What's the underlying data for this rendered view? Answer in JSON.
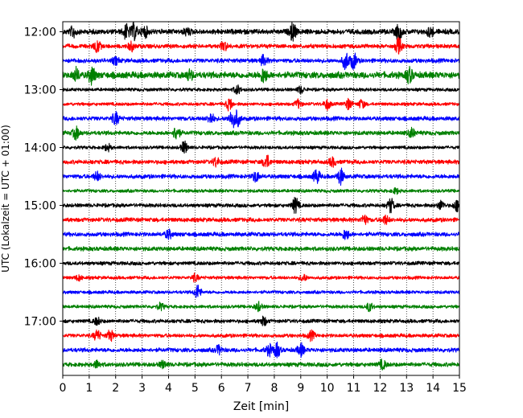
{
  "chart_data": {
    "type": "line",
    "title": "",
    "xlabel": "Zeit  [min]",
    "ylabel": "UTC (Lokalzeit = UTC + 01:00)",
    "xlim": [
      0,
      15
    ],
    "x_ticks": [
      "0",
      "1",
      "2",
      "3",
      "4",
      "5",
      "6",
      "7",
      "8",
      "9",
      "10",
      "11",
      "12",
      "13",
      "14",
      "15"
    ],
    "y_ticks": [
      {
        "label": "12:00",
        "trace": 0
      },
      {
        "label": "13:00",
        "trace": 4
      },
      {
        "label": "14:00",
        "trace": 8
      },
      {
        "label": "15:00",
        "trace": 12
      },
      {
        "label": "16:00",
        "trace": 16
      },
      {
        "label": "17:00",
        "trace": 20
      }
    ],
    "grid": "vertical-dotted",
    "trace_interval_min": 15,
    "color_cycle": [
      "#000000",
      "#ff0000",
      "#0000ff",
      "#008000"
    ],
    "traces": [
      {
        "start": "12:00",
        "amp": 0.55,
        "bursts": [
          [
            0.4,
            0.6
          ],
          [
            2.4,
            0.8
          ],
          [
            2.7,
            0.9
          ],
          [
            3.1,
            0.6
          ],
          [
            4.7,
            0.4
          ],
          [
            8.7,
            1.0
          ],
          [
            12.7,
            0.9
          ],
          [
            13.9,
            0.5
          ]
        ]
      },
      {
        "start": "12:15",
        "amp": 0.45,
        "bursts": [
          [
            1.3,
            0.7
          ],
          [
            2.6,
            0.5
          ],
          [
            6.1,
            0.5
          ],
          [
            12.7,
            0.9
          ]
        ]
      },
      {
        "start": "12:30",
        "amp": 0.45,
        "bursts": [
          [
            2.0,
            0.4
          ],
          [
            7.6,
            0.6
          ],
          [
            10.7,
            1.0
          ],
          [
            11.0,
            0.9
          ]
        ]
      },
      {
        "start": "12:45",
        "amp": 0.7,
        "bursts": [
          [
            0.5,
            0.7
          ],
          [
            1.1,
            1.0
          ],
          [
            4.8,
            0.5
          ],
          [
            7.6,
            0.8
          ],
          [
            13.1,
            0.8
          ]
        ]
      },
      {
        "start": "13:00",
        "amp": 0.35,
        "bursts": [
          [
            6.6,
            0.5
          ],
          [
            9.0,
            0.4
          ]
        ]
      },
      {
        "start": "13:15",
        "amp": 0.35,
        "bursts": [
          [
            6.3,
            0.7
          ],
          [
            8.9,
            0.5
          ],
          [
            10.0,
            0.6
          ],
          [
            10.8,
            0.6
          ],
          [
            11.3,
            0.5
          ]
        ]
      },
      {
        "start": "13:30",
        "amp": 0.45,
        "bursts": [
          [
            2.0,
            0.7
          ],
          [
            5.6,
            0.6
          ],
          [
            6.4,
            0.9
          ],
          [
            6.6,
            0.8
          ]
        ]
      },
      {
        "start": "13:45",
        "amp": 0.45,
        "bursts": [
          [
            0.5,
            0.7
          ],
          [
            4.3,
            0.8
          ],
          [
            13.2,
            0.5
          ]
        ]
      },
      {
        "start": "14:00",
        "amp": 0.35,
        "bursts": [
          [
            1.7,
            0.4
          ],
          [
            4.6,
            0.7
          ]
        ]
      },
      {
        "start": "14:15",
        "amp": 0.45,
        "bursts": [
          [
            5.8,
            0.5
          ],
          [
            7.7,
            0.8
          ],
          [
            10.2,
            0.5
          ]
        ]
      },
      {
        "start": "14:30",
        "amp": 0.45,
        "bursts": [
          [
            1.3,
            0.5
          ],
          [
            7.3,
            0.6
          ],
          [
            9.6,
            0.8
          ],
          [
            10.5,
            0.9
          ]
        ]
      },
      {
        "start": "14:45",
        "amp": 0.35,
        "bursts": [
          [
            12.6,
            0.3
          ]
        ]
      },
      {
        "start": "15:00",
        "amp": 0.4,
        "bursts": [
          [
            8.8,
            0.9
          ],
          [
            12.4,
            0.8
          ],
          [
            14.3,
            0.5
          ],
          [
            14.9,
            0.6
          ]
        ]
      },
      {
        "start": "15:15",
        "amp": 0.45,
        "bursts": [
          [
            11.4,
            0.5
          ],
          [
            12.2,
            0.5
          ]
        ]
      },
      {
        "start": "15:30",
        "amp": 0.45,
        "bursts": [
          [
            4.0,
            0.5
          ],
          [
            10.7,
            0.6
          ]
        ]
      },
      {
        "start": "15:45",
        "amp": 0.45,
        "bursts": []
      },
      {
        "start": "16:00",
        "amp": 0.4,
        "bursts": []
      },
      {
        "start": "16:15",
        "amp": 0.35,
        "bursts": [
          [
            0.6,
            0.3
          ],
          [
            5.0,
            0.4
          ],
          [
            9.1,
            0.4
          ]
        ]
      },
      {
        "start": "16:30",
        "amp": 0.35,
        "bursts": [
          [
            5.1,
            0.8
          ]
        ]
      },
      {
        "start": "16:45",
        "amp": 0.35,
        "bursts": [
          [
            3.7,
            0.4
          ],
          [
            7.4,
            0.5
          ],
          [
            11.6,
            0.5
          ]
        ]
      },
      {
        "start": "17:00",
        "amp": 0.4,
        "bursts": [
          [
            1.3,
            0.4
          ],
          [
            7.6,
            0.5
          ]
        ]
      },
      {
        "start": "17:15",
        "amp": 0.4,
        "bursts": [
          [
            1.3,
            0.6
          ],
          [
            1.8,
            0.6
          ],
          [
            9.4,
            0.5
          ]
        ]
      },
      {
        "start": "17:30",
        "amp": 0.45,
        "bursts": [
          [
            5.9,
            0.5
          ],
          [
            7.8,
            0.6
          ],
          [
            8.1,
            0.8
          ],
          [
            9.0,
            0.7
          ]
        ]
      },
      {
        "start": "17:45",
        "amp": 0.45,
        "bursts": [
          [
            1.3,
            0.4
          ],
          [
            3.8,
            0.4
          ],
          [
            12.1,
            0.5
          ]
        ]
      }
    ]
  }
}
